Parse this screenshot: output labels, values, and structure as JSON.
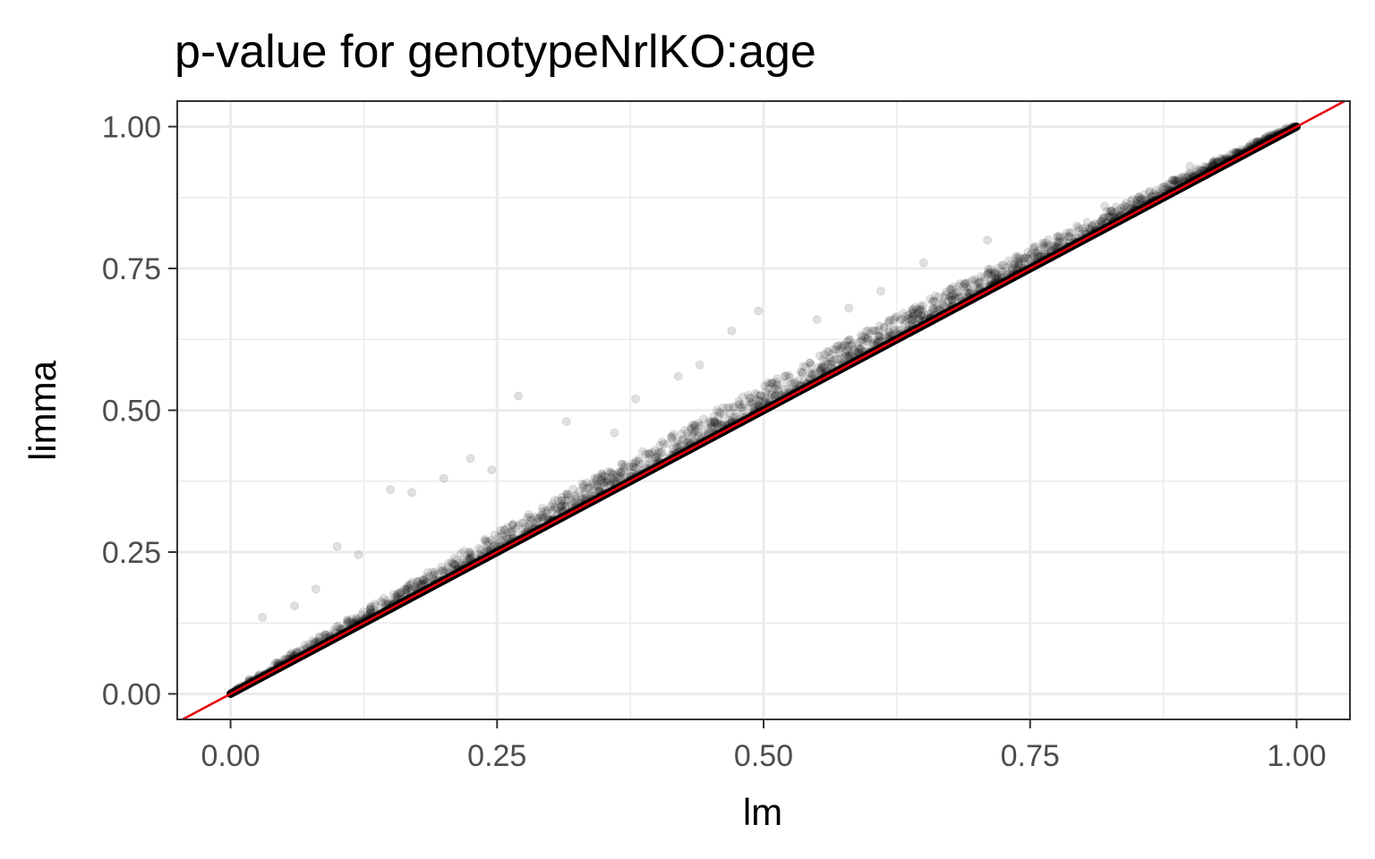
{
  "chart_data": {
    "type": "scatter",
    "title": "p-value for genotypeNrlKO:age",
    "xlabel": "lm",
    "ylabel": "limma",
    "xlim": [
      -0.05,
      1.05
    ],
    "ylim": [
      -0.045,
      1.045
    ],
    "x_ticks": [
      0,
      0.25,
      0.5,
      0.75,
      1
    ],
    "x_tick_labels": [
      "0.00",
      "0.25",
      "0.50",
      "0.75",
      "1.00"
    ],
    "y_ticks": [
      0,
      0.25,
      0.5,
      0.75,
      1
    ],
    "y_tick_labels": [
      "0.00",
      "0.25",
      "0.50",
      "0.75",
      "1.00"
    ],
    "grid": true,
    "legend": "none",
    "point_color": "#000000",
    "point_alpha": 0.12,
    "reference_line": {
      "slope": 1,
      "intercept": 0,
      "color": "#e8000b"
    },
    "point_cloud": {
      "description": "Dense cloud of points along and mostly above the y = x line; limma p-values slightly larger than lm p-values",
      "x_range": [
        0,
        1
      ],
      "typical_excess_max": 0.045
    },
    "outliers": [
      {
        "x": 0.27,
        "y": 0.525
      },
      {
        "x": 0.225,
        "y": 0.415
      },
      {
        "x": 0.315,
        "y": 0.48
      },
      {
        "x": 0.15,
        "y": 0.36
      },
      {
        "x": 0.17,
        "y": 0.355
      },
      {
        "x": 0.1,
        "y": 0.26
      },
      {
        "x": 0.495,
        "y": 0.675
      },
      {
        "x": 0.47,
        "y": 0.64
      },
      {
        "x": 0.44,
        "y": 0.58
      },
      {
        "x": 0.42,
        "y": 0.56
      },
      {
        "x": 0.71,
        "y": 0.8
      },
      {
        "x": 0.65,
        "y": 0.76
      },
      {
        "x": 0.61,
        "y": 0.71
      },
      {
        "x": 0.03,
        "y": 0.135
      },
      {
        "x": 0.06,
        "y": 0.155
      },
      {
        "x": 0.08,
        "y": 0.185
      },
      {
        "x": 0.12,
        "y": 0.245
      },
      {
        "x": 0.2,
        "y": 0.38
      },
      {
        "x": 0.245,
        "y": 0.395
      },
      {
        "x": 0.38,
        "y": 0.52
      },
      {
        "x": 0.36,
        "y": 0.46
      },
      {
        "x": 0.9,
        "y": 0.93
      },
      {
        "x": 0.82,
        "y": 0.86
      },
      {
        "x": 0.55,
        "y": 0.66
      },
      {
        "x": 0.58,
        "y": 0.68
      }
    ]
  }
}
